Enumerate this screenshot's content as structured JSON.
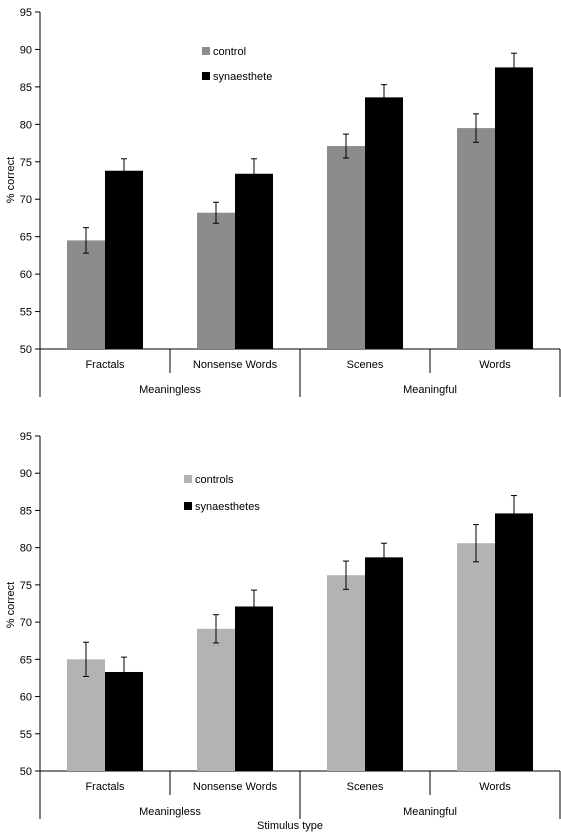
{
  "chart_data": [
    {
      "type": "bar",
      "categories": [
        "Fractals",
        "Nonsense Words",
        "Scenes",
        "Words"
      ],
      "groups": [
        {
          "label": "Meaningless",
          "categories": [
            "Fractals",
            "Nonsense Words"
          ]
        },
        {
          "label": "Meaningful",
          "categories": [
            "Scenes",
            "Words"
          ]
        }
      ],
      "series": [
        {
          "name": "control",
          "values": [
            64.5,
            68.2,
            77.1,
            79.5
          ],
          "errors": [
            1.7,
            1.4,
            1.6,
            1.9
          ],
          "color": "#8c8c8c"
        },
        {
          "name": "synaesthete",
          "values": [
            73.8,
            73.4,
            83.6,
            87.6
          ],
          "errors": [
            1.6,
            2.0,
            1.7,
            1.9
          ],
          "color": "#000000"
        }
      ],
      "title": "",
      "xlabel": "",
      "ylabel": "% correct",
      "ylim": [
        50,
        95
      ],
      "yticks": [
        "50",
        "55",
        "60",
        "65",
        "70",
        "75",
        "80",
        "85",
        "90",
        "95"
      ],
      "legend_position": "top-left",
      "grid": false
    },
    {
      "type": "bar",
      "categories": [
        "Fractals",
        "Nonsense Words",
        "Scenes",
        "Words"
      ],
      "groups": [
        {
          "label": "Meaningless",
          "categories": [
            "Fractals",
            "Nonsense Words"
          ]
        },
        {
          "label": "Meaningful",
          "categories": [
            "Scenes",
            "Words"
          ]
        }
      ],
      "series": [
        {
          "name": "controls",
          "values": [
            65.0,
            69.1,
            76.3,
            80.6
          ],
          "errors": [
            2.3,
            1.9,
            1.9,
            2.5
          ],
          "color": "#b3b3b3"
        },
        {
          "name": "synaesthetes",
          "values": [
            63.3,
            72.1,
            78.7,
            84.6
          ],
          "errors": [
            2.0,
            2.2,
            1.9,
            2.4
          ],
          "color": "#000000"
        }
      ],
      "title": "",
      "xlabel": "Stimulus type",
      "ylabel": "% correct",
      "ylim": [
        50,
        95
      ],
      "yticks": [
        "50",
        "55",
        "60",
        "65",
        "70",
        "75",
        "80",
        "85",
        "90",
        "95"
      ],
      "legend_position": "top-left",
      "grid": false
    }
  ]
}
